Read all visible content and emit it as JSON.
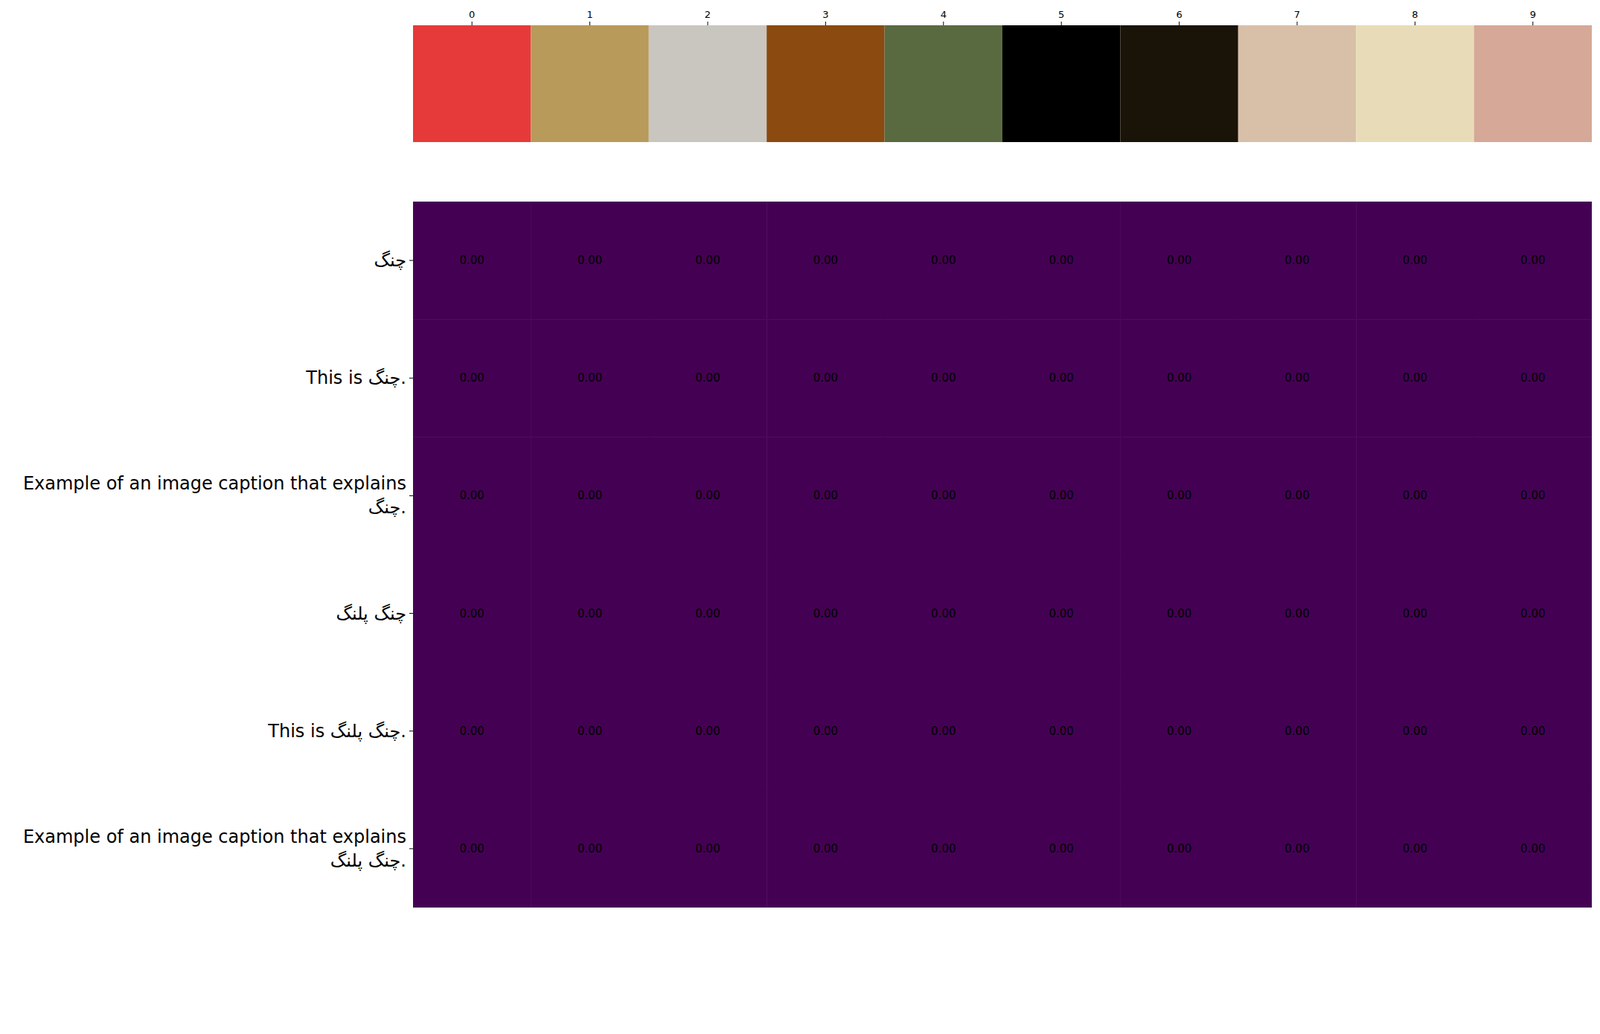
{
  "chart_data": {
    "type": "heatmap",
    "categories": [
      "0",
      "1",
      "2",
      "3",
      "4",
      "5",
      "6",
      "7",
      "8",
      "9"
    ],
    "y_categories": [
      "چنگ",
      "This is چنگ.",
      "Example of an image caption that explains\nچنگ.",
      "چنگ پلنگ",
      "This is چنگ پلنگ.",
      "Example of an image caption that explains\nچنگ پلنگ."
    ],
    "values": [
      [
        0,
        0,
        0,
        0,
        0,
        0,
        0,
        0,
        0,
        0
      ],
      [
        0,
        0,
        0,
        0,
        0,
        0,
        0,
        0,
        0,
        0
      ],
      [
        0,
        0,
        0,
        0,
        0,
        0,
        0,
        0,
        0,
        0
      ],
      [
        0,
        0,
        0,
        0,
        0,
        0,
        0,
        0,
        0,
        0
      ],
      [
        0,
        0,
        0,
        0,
        0,
        0,
        0,
        0,
        0,
        0
      ],
      [
        0,
        0,
        0,
        0,
        0,
        0,
        0,
        0,
        0,
        0
      ]
    ],
    "value_labels": [
      [
        "0.00",
        "0.00",
        "0.00",
        "0.00",
        "0.00",
        "0.00",
        "0.00",
        "0.00",
        "0.00",
        "0.00"
      ],
      [
        "0.00",
        "0.00",
        "0.00",
        "0.00",
        "0.00",
        "0.00",
        "0.00",
        "0.00",
        "0.00",
        "0.00"
      ],
      [
        "0.00",
        "0.00",
        "0.00",
        "0.00",
        "0.00",
        "0.00",
        "0.00",
        "0.00",
        "0.00",
        "0.00"
      ],
      [
        "0.00",
        "0.00",
        "0.00",
        "0.00",
        "0.00",
        "0.00",
        "0.00",
        "0.00",
        "0.00",
        "0.00"
      ],
      [
        "0.00",
        "0.00",
        "0.00",
        "0.00",
        "0.00",
        "0.00",
        "0.00",
        "0.00",
        "0.00",
        "0.00"
      ],
      [
        "0.00",
        "0.00",
        "0.00",
        "0.00",
        "0.00",
        "0.00",
        "0.00",
        "0.00",
        "0.00",
        "0.00"
      ]
    ],
    "data_labels": true,
    "color": "#440154"
  }
}
